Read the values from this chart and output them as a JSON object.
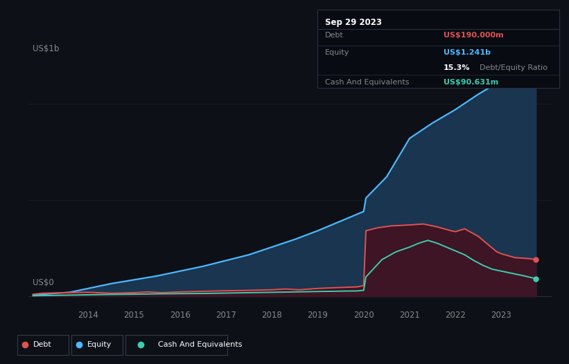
{
  "bg_color": "#0d1117",
  "plot_bg_color": "#0d1117",
  "title_y_label": "US$1b",
  "zero_y_label": "US$0",
  "x_ticks": [
    2014,
    2015,
    2016,
    2017,
    2018,
    2019,
    2020,
    2021,
    2022,
    2023
  ],
  "equity_color": "#4db8ff",
  "debt_color": "#e05252",
  "cash_color": "#3ecdaf",
  "equity_fill_color": "#1a3550",
  "debt_fill_color": "#3d1525",
  "cash_fill_color": "#1a3530",
  "grid_color": "#2a3040",
  "annotation_bg": "#080c12",
  "annotation_border": "#2a3040",
  "equity_data": {
    "years": [
      2012.8,
      2013.0,
      2013.3,
      2013.6,
      2014.0,
      2014.5,
      2015.0,
      2015.5,
      2016.0,
      2016.5,
      2017.0,
      2017.5,
      2018.0,
      2018.5,
      2019.0,
      2019.5,
      2019.9,
      2020.0,
      2020.05,
      2020.5,
      2021.0,
      2021.5,
      2022.0,
      2022.5,
      2023.0,
      2023.75
    ],
    "values": [
      0.005,
      0.01,
      0.015,
      0.02,
      0.04,
      0.065,
      0.085,
      0.105,
      0.13,
      0.155,
      0.185,
      0.215,
      0.255,
      0.295,
      0.34,
      0.39,
      0.43,
      0.44,
      0.51,
      0.62,
      0.82,
      0.9,
      0.97,
      1.05,
      1.12,
      1.241
    ]
  },
  "debt_data": {
    "years": [
      2012.8,
      2013.0,
      2013.5,
      2014.0,
      2014.5,
      2015.0,
      2015.3,
      2015.6,
      2016.0,
      2016.5,
      2017.0,
      2017.5,
      2018.0,
      2018.3,
      2018.6,
      2019.0,
      2019.5,
      2019.85,
      2019.9,
      2020.0,
      2020.05,
      2020.3,
      2020.6,
      2021.0,
      2021.3,
      2021.6,
      2021.9,
      2022.0,
      2022.2,
      2022.5,
      2022.7,
      2022.9,
      2023.0,
      2023.3,
      2023.6,
      2023.75
    ],
    "values": [
      0.01,
      0.015,
      0.018,
      0.02,
      0.015,
      0.018,
      0.022,
      0.018,
      0.022,
      0.025,
      0.028,
      0.03,
      0.033,
      0.037,
      0.033,
      0.04,
      0.045,
      0.048,
      0.05,
      0.055,
      0.34,
      0.355,
      0.365,
      0.37,
      0.375,
      0.36,
      0.34,
      0.335,
      0.35,
      0.31,
      0.27,
      0.23,
      0.22,
      0.2,
      0.195,
      0.19
    ]
  },
  "cash_data": {
    "years": [
      2012.8,
      2013.0,
      2013.5,
      2014.0,
      2014.5,
      2015.0,
      2015.5,
      2016.0,
      2016.5,
      2017.0,
      2017.5,
      2018.0,
      2018.5,
      2019.0,
      2019.5,
      2019.85,
      2019.9,
      2020.0,
      2020.05,
      2020.4,
      2020.7,
      2021.0,
      2021.2,
      2021.4,
      2021.6,
      2021.8,
      2022.0,
      2022.2,
      2022.4,
      2022.6,
      2022.8,
      2023.0,
      2023.3,
      2023.5,
      2023.75
    ],
    "values": [
      0.002,
      0.003,
      0.005,
      0.007,
      0.009,
      0.01,
      0.012,
      0.013,
      0.014,
      0.016,
      0.018,
      0.02,
      0.022,
      0.024,
      0.026,
      0.027,
      0.028,
      0.03,
      0.1,
      0.19,
      0.23,
      0.255,
      0.275,
      0.29,
      0.275,
      0.255,
      0.235,
      0.215,
      0.185,
      0.16,
      0.14,
      0.13,
      0.115,
      0.105,
      0.0906
    ]
  },
  "tooltip_date": "Sep 29 2023",
  "tooltip_debt_label": "Debt",
  "tooltip_debt_value": "US$190.000m",
  "tooltip_equity_label": "Equity",
  "tooltip_equity_value": "US$1.241b",
  "tooltip_ratio_value": "15.3%",
  "tooltip_ratio_label": "Debt/Equity Ratio",
  "tooltip_cash_label": "Cash And Equivalents",
  "tooltip_cash_value": "US$90.631m",
  "legend_items": [
    "Debt",
    "Equity",
    "Cash And Equivalents"
  ],
  "ylim": [
    -0.05,
    1.35
  ],
  "xlim": [
    2012.7,
    2024.1
  ]
}
